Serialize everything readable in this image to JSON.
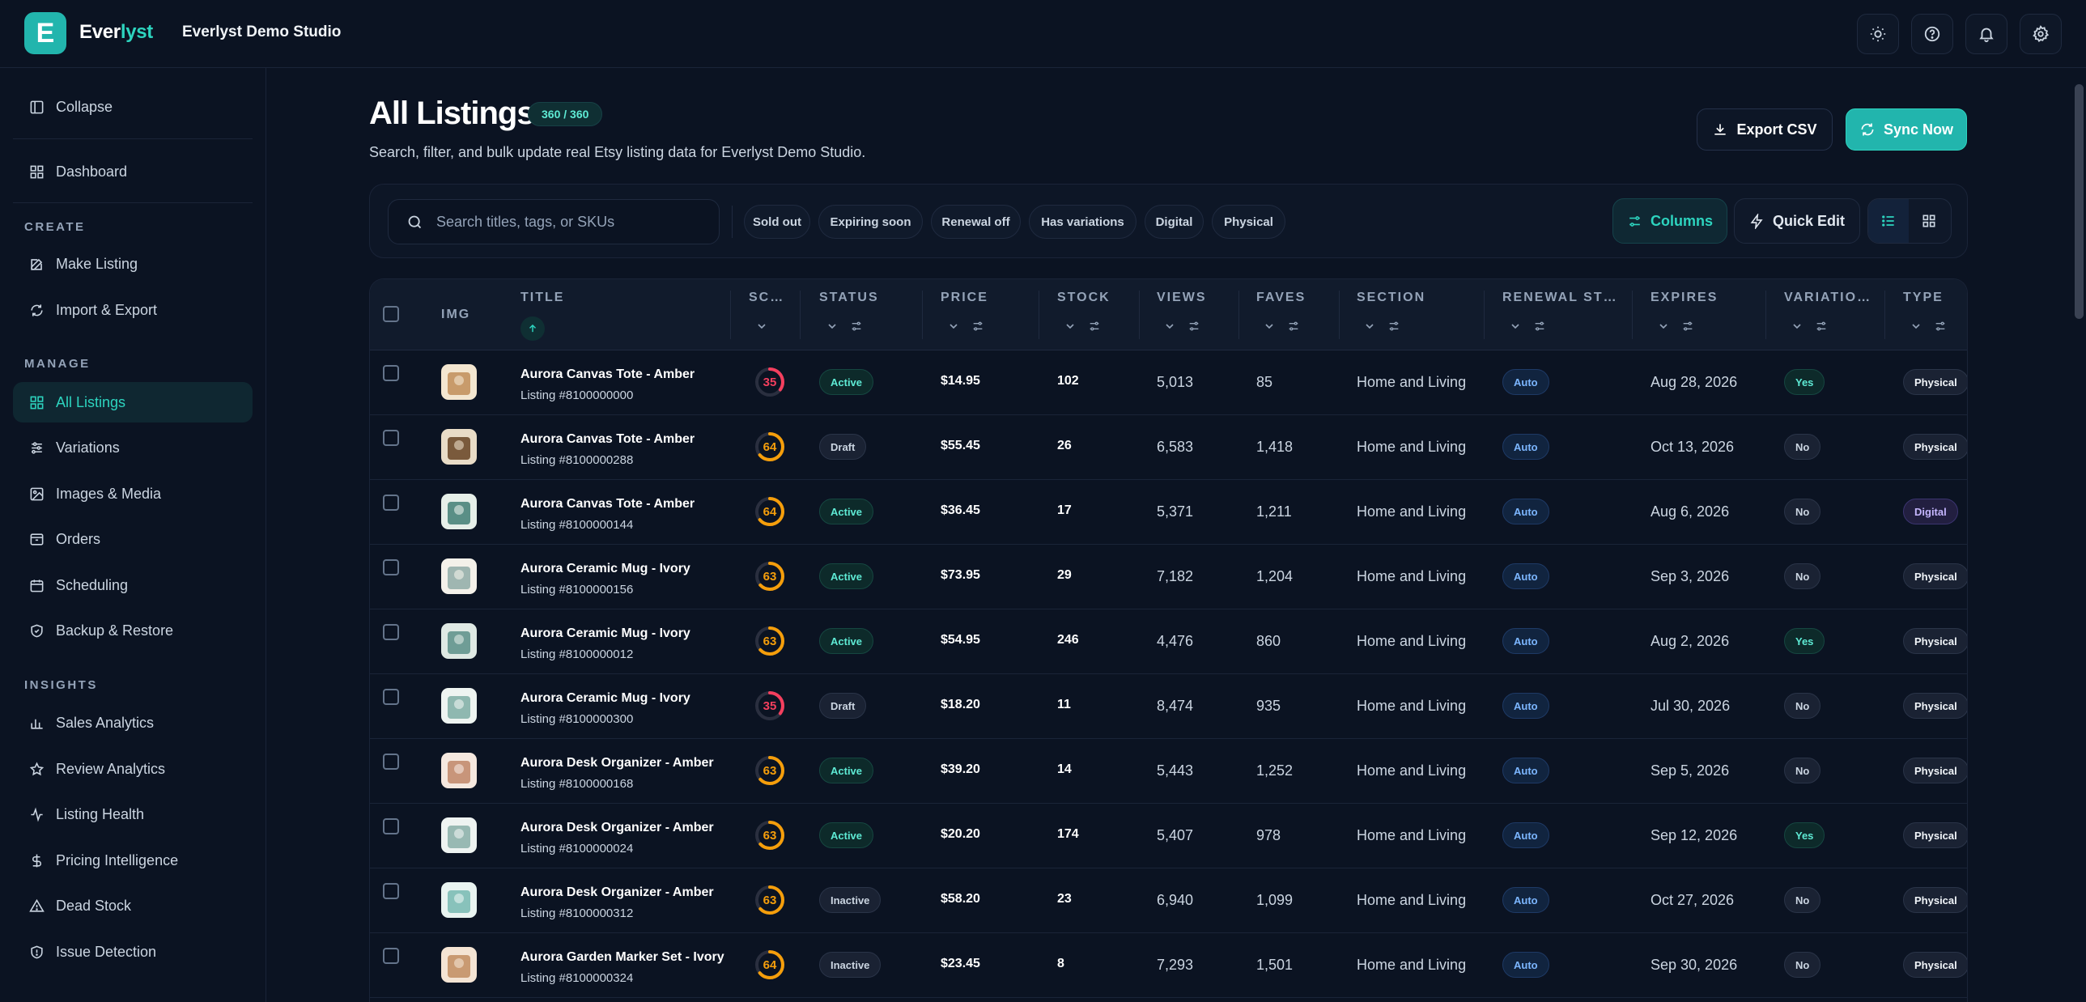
{
  "app": {
    "brand_prefix": "Ever",
    "brand_suffix": "lyst",
    "logo_letter": "E",
    "studio": "Everlyst Demo Studio"
  },
  "topbar": {
    "icons": [
      "sun-icon",
      "help-icon",
      "bell-icon",
      "settings-icon"
    ]
  },
  "sidebar": {
    "collapse": "Collapse",
    "dashboard": "Dashboard",
    "sections": {
      "create": "CREATE",
      "manage": "MANAGE",
      "insights": "INSIGHTS"
    },
    "create_items": [
      "Make Listing",
      "Import & Export"
    ],
    "manage_items": [
      "All Listings",
      "Variations",
      "Images & Media",
      "Orders",
      "Scheduling",
      "Backup & Restore"
    ],
    "insights_items": [
      "Sales Analytics",
      "Review Analytics",
      "Listing Health",
      "Pricing Intelligence",
      "Dead Stock",
      "Issue Detection"
    ],
    "active": "All Listings"
  },
  "page": {
    "title": "All Listings",
    "count": "360 / 360",
    "subtitle": "Search, filter, and bulk update real Etsy listing data for Everlyst Demo Studio.",
    "export_label": "Export CSV",
    "sync_label": "Sync Now"
  },
  "filters": {
    "search_placeholder": "Search titles, tags, or SKUs",
    "chips": [
      "Sold out",
      "Expiring soon",
      "Renewal off",
      "Has variations",
      "Digital",
      "Physical"
    ],
    "columns_label": "Columns",
    "quick_edit_label": "Quick Edit"
  },
  "table": {
    "headers": {
      "img": "IMG",
      "title": "TITLE",
      "score": "SC…",
      "status": "STATUS",
      "price": "PRICE",
      "stock": "STOCK",
      "views": "VIEWS",
      "faves": "FAVES",
      "section": "SECTION",
      "renewal": "RENEWAL ST…",
      "expires": "EXPIRES",
      "variations": "VARIATIO…",
      "type": "TYPE"
    },
    "rows": [
      {
        "title": "Aurora Canvas Tote - Amber",
        "listing": "Listing #8100000000",
        "score": "35",
        "status": "Active",
        "price": "$14.95",
        "stock": "102",
        "views": "5,013",
        "faves": "85",
        "section": "Home and Living",
        "renewal": "Auto",
        "expires": "Aug 28, 2026",
        "variations": "Yes",
        "type": "Physical"
      },
      {
        "title": "Aurora Canvas Tote - Amber",
        "listing": "Listing #8100000288",
        "score": "64",
        "status": "Draft",
        "price": "$55.45",
        "stock": "26",
        "views": "6,583",
        "faves": "1,418",
        "section": "Home and Living",
        "renewal": "Auto",
        "expires": "Oct 13, 2026",
        "variations": "No",
        "type": "Physical"
      },
      {
        "title": "Aurora Canvas Tote - Amber",
        "listing": "Listing #8100000144",
        "score": "64",
        "status": "Active",
        "price": "$36.45",
        "stock": "17",
        "views": "5,371",
        "faves": "1,211",
        "section": "Home and Living",
        "renewal": "Auto",
        "expires": "Aug 6, 2026",
        "variations": "No",
        "type": "Digital"
      },
      {
        "title": "Aurora Ceramic Mug - Ivory",
        "listing": "Listing #8100000156",
        "score": "63",
        "status": "Active",
        "price": "$73.95",
        "stock": "29",
        "views": "7,182",
        "faves": "1,204",
        "section": "Home and Living",
        "renewal": "Auto",
        "expires": "Sep 3, 2026",
        "variations": "No",
        "type": "Physical"
      },
      {
        "title": "Aurora Ceramic Mug - Ivory",
        "listing": "Listing #8100000012",
        "score": "63",
        "status": "Active",
        "price": "$54.95",
        "stock": "246",
        "views": "4,476",
        "faves": "860",
        "section": "Home and Living",
        "renewal": "Auto",
        "expires": "Aug 2, 2026",
        "variations": "Yes",
        "type": "Physical"
      },
      {
        "title": "Aurora Ceramic Mug - Ivory",
        "listing": "Listing #8100000300",
        "score": "35",
        "status": "Draft",
        "price": "$18.20",
        "stock": "11",
        "views": "8,474",
        "faves": "935",
        "section": "Home and Living",
        "renewal": "Auto",
        "expires": "Jul 30, 2026",
        "variations": "No",
        "type": "Physical"
      },
      {
        "title": "Aurora Desk Organizer - Amber",
        "listing": "Listing #8100000168",
        "score": "63",
        "status": "Active",
        "price": "$39.20",
        "stock": "14",
        "views": "5,443",
        "faves": "1,252",
        "section": "Home and Living",
        "renewal": "Auto",
        "expires": "Sep 5, 2026",
        "variations": "No",
        "type": "Physical"
      },
      {
        "title": "Aurora Desk Organizer - Amber",
        "listing": "Listing #8100000024",
        "score": "63",
        "status": "Active",
        "price": "$20.20",
        "stock": "174",
        "views": "5,407",
        "faves": "978",
        "section": "Home and Living",
        "renewal": "Auto",
        "expires": "Sep 12, 2026",
        "variations": "Yes",
        "type": "Physical"
      },
      {
        "title": "Aurora Desk Organizer - Amber",
        "listing": "Listing #8100000312",
        "score": "63",
        "status": "Inactive",
        "price": "$58.20",
        "stock": "23",
        "views": "6,940",
        "faves": "1,099",
        "section": "Home and Living",
        "renewal": "Auto",
        "expires": "Oct 27, 2026",
        "variations": "No",
        "type": "Physical"
      },
      {
        "title": "Aurora Garden Marker Set - Ivory",
        "listing": "Listing #8100000324",
        "score": "64",
        "status": "Inactive",
        "price": "$23.45",
        "stock": "8",
        "views": "7,293",
        "faves": "1,501",
        "section": "Home and Living",
        "renewal": "Auto",
        "expires": "Sep 30, 2026",
        "variations": "No",
        "type": "Physical"
      }
    ]
  },
  "colors": {
    "accent": "#22b5ad",
    "score_low": "#f43f5e",
    "score_mid": "#f59e0b",
    "background": "#0b1322"
  }
}
